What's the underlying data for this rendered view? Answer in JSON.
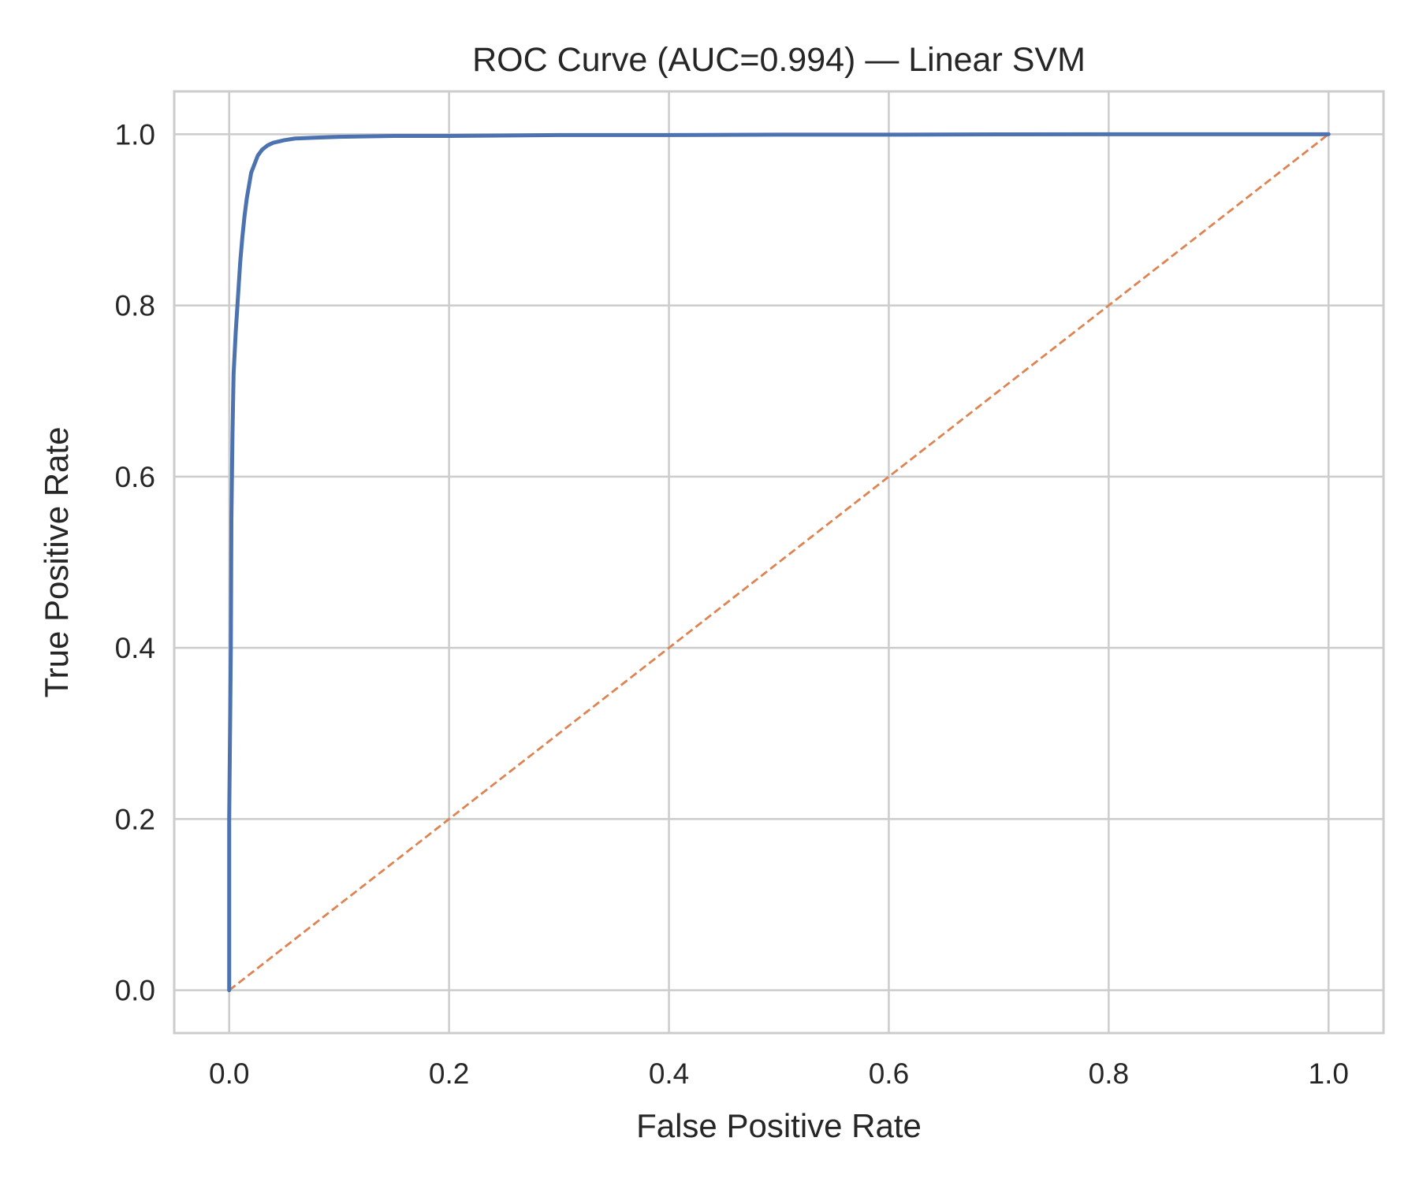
{
  "chart_data": {
    "type": "line",
    "title": "ROC Curve (AUC=0.994) — Linear SVM",
    "xlabel": "False Positive Rate",
    "ylabel": "True Positive Rate",
    "xlim": [
      -0.05,
      1.05
    ],
    "ylim": [
      -0.05,
      1.05
    ],
    "xticks": [
      0.0,
      0.2,
      0.4,
      0.6,
      0.8,
      1.0
    ],
    "yticks": [
      0.0,
      0.2,
      0.4,
      0.6,
      0.8,
      1.0
    ],
    "xtick_labels": [
      "0.0",
      "0.2",
      "0.4",
      "0.6",
      "0.8",
      "1.0"
    ],
    "ytick_labels": [
      "0.0",
      "0.2",
      "0.4",
      "0.6",
      "0.8",
      "1.0"
    ],
    "grid": true,
    "series": [
      {
        "x": [
          0.0,
          0.0,
          0.0015,
          0.002,
          0.003,
          0.004,
          0.006,
          0.008,
          0.01,
          0.012,
          0.014,
          0.016,
          0.018,
          0.02,
          0.023,
          0.026,
          0.03,
          0.035,
          0.04,
          0.05,
          0.06,
          0.08,
          0.1,
          0.15,
          0.2,
          0.3,
          0.4,
          0.5,
          0.6,
          0.7,
          0.8,
          0.9,
          1.0
        ],
        "y": [
          0.0,
          0.2,
          0.4,
          0.55,
          0.65,
          0.72,
          0.77,
          0.81,
          0.85,
          0.88,
          0.905,
          0.925,
          0.94,
          0.955,
          0.965,
          0.975,
          0.982,
          0.987,
          0.99,
          0.993,
          0.995,
          0.996,
          0.997,
          0.998,
          0.998,
          0.999,
          0.999,
          0.9995,
          0.9995,
          0.9998,
          0.9999,
          1.0,
          1.0
        ],
        "color": "#4c72b0",
        "style": "solid"
      },
      {
        "x": [
          0.0,
          1.0
        ],
        "y": [
          0.0,
          1.0
        ],
        "color": "#dd8452",
        "style": "dashed"
      }
    ]
  }
}
